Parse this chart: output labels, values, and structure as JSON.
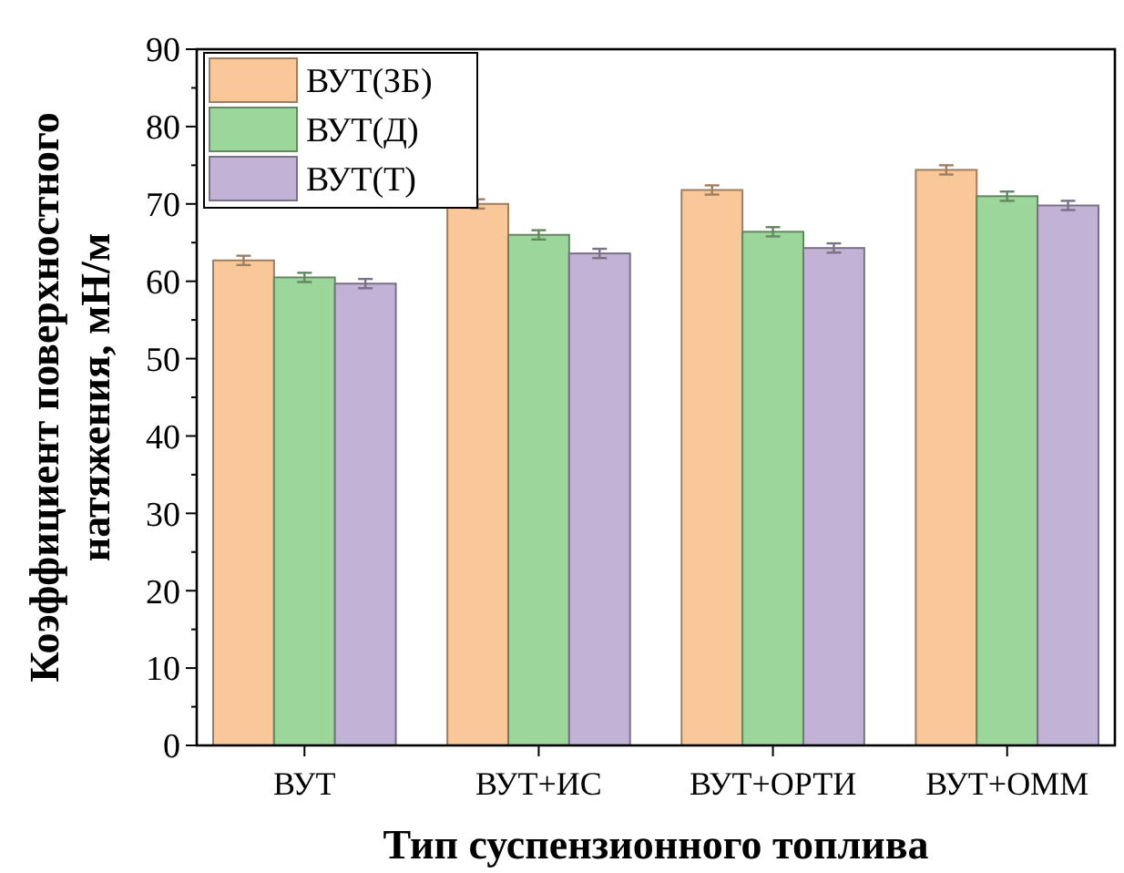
{
  "chart_data": {
    "type": "bar",
    "xlabel": "Тип суспензионного топлива",
    "ylabel": "Коэффициент поверхностного натяжения, мН/м",
    "categories": [
      "ВУТ",
      "ВУТ+ИС",
      "ВУТ+ОРТИ",
      "ВУТ+ОММ"
    ],
    "series": [
      {
        "name": "ВУТ(ЗБ)",
        "color": "#fac898",
        "values": [
          62.7,
          70.0,
          71.8,
          74.4
        ],
        "errors": [
          0.6,
          0.6,
          0.6,
          0.6
        ]
      },
      {
        "name": "ВУТ(Д)",
        "color": "#9dd69b",
        "values": [
          60.5,
          66.0,
          66.4,
          71.0
        ],
        "errors": [
          0.6,
          0.6,
          0.6,
          0.6
        ]
      },
      {
        "name": "ВУТ(Т)",
        "color": "#c2b2d6",
        "values": [
          59.7,
          63.6,
          64.3,
          69.8
        ],
        "errors": [
          0.6,
          0.6,
          0.6,
          0.6
        ]
      }
    ],
    "ylim": [
      0,
      90
    ],
    "yticks": [
      0,
      10,
      20,
      30,
      40,
      50,
      60,
      70,
      80,
      90
    ],
    "legend": "top left",
    "grid": false
  }
}
